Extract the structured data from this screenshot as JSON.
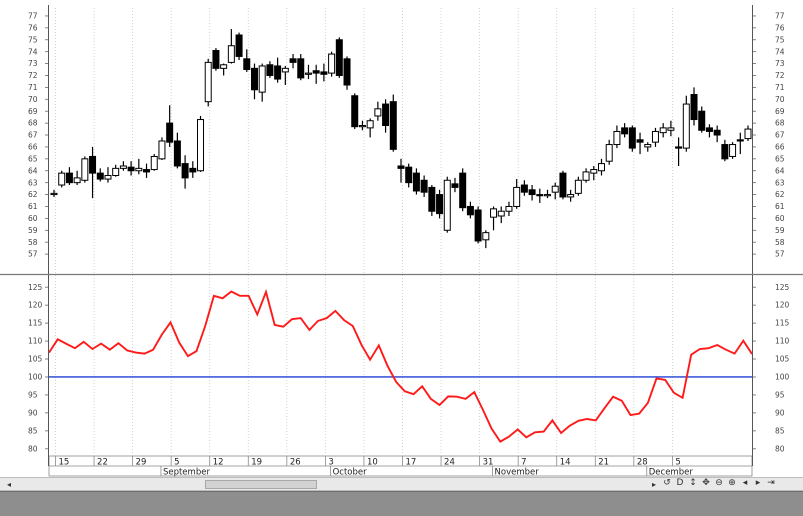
{
  "chart_data": [
    {
      "type": "candlestick",
      "title": "",
      "ylim": [
        56,
        77.5
      ],
      "y_ticks": [
        "57",
        "58",
        "59",
        "60",
        "61",
        "62",
        "63",
        "64",
        "65",
        "66",
        "67",
        "68",
        "69",
        "70",
        "71",
        "72",
        "73",
        "74",
        "75",
        "76",
        "77"
      ],
      "series": [
        {
          "candles": [
            {
              "o": 62.1,
              "h": 62.4,
              "l": 61.8,
              "c": 62.1
            },
            {
              "o": 62.8,
              "h": 64.0,
              "l": 62.6,
              "c": 63.8
            },
            {
              "o": 63.8,
              "h": 64.3,
              "l": 62.8,
              "c": 63.0
            },
            {
              "o": 63.0,
              "h": 64.0,
              "l": 62.8,
              "c": 63.4
            },
            {
              "o": 63.2,
              "h": 65.2,
              "l": 63.0,
              "c": 65.0
            },
            {
              "o": 65.2,
              "h": 66.0,
              "l": 61.7,
              "c": 63.8
            },
            {
              "o": 63.8,
              "h": 64.2,
              "l": 63.1,
              "c": 63.3
            },
            {
              "o": 63.3,
              "h": 64.3,
              "l": 63.0,
              "c": 63.6
            },
            {
              "o": 63.6,
              "h": 64.5,
              "l": 63.5,
              "c": 64.2
            },
            {
              "o": 64.2,
              "h": 64.8,
              "l": 64.0,
              "c": 64.4
            },
            {
              "o": 64.3,
              "h": 64.8,
              "l": 63.6,
              "c": 64.0
            },
            {
              "o": 64.0,
              "h": 65.0,
              "l": 63.7,
              "c": 64.2
            },
            {
              "o": 64.1,
              "h": 64.6,
              "l": 63.4,
              "c": 63.9
            },
            {
              "o": 64.1,
              "h": 65.4,
              "l": 64.0,
              "c": 65.2
            },
            {
              "o": 65.0,
              "h": 66.8,
              "l": 64.9,
              "c": 66.5
            },
            {
              "o": 68.0,
              "h": 69.5,
              "l": 66.0,
              "c": 66.4
            },
            {
              "o": 66.5,
              "h": 67.2,
              "l": 64.2,
              "c": 64.4
            },
            {
              "o": 64.6,
              "h": 65.3,
              "l": 62.5,
              "c": 63.4
            },
            {
              "o": 64.2,
              "h": 64.8,
              "l": 63.4,
              "c": 63.9
            },
            {
              "o": 64.0,
              "h": 68.6,
              "l": 63.9,
              "c": 68.3
            },
            {
              "o": 69.8,
              "h": 73.4,
              "l": 69.4,
              "c": 73.1
            },
            {
              "o": 74.1,
              "h": 74.3,
              "l": 72.4,
              "c": 72.6
            },
            {
              "o": 72.6,
              "h": 73.0,
              "l": 72.0,
              "c": 72.9
            },
            {
              "o": 73.1,
              "h": 75.9,
              "l": 73.0,
              "c": 74.5
            },
            {
              "o": 75.4,
              "h": 75.6,
              "l": 73.3,
              "c": 73.6
            },
            {
              "o": 73.4,
              "h": 74.2,
              "l": 72.3,
              "c": 72.5
            },
            {
              "o": 72.6,
              "h": 73.0,
              "l": 70.0,
              "c": 70.8
            },
            {
              "o": 70.6,
              "h": 73.0,
              "l": 69.8,
              "c": 72.8
            },
            {
              "o": 72.9,
              "h": 73.2,
              "l": 71.8,
              "c": 72.0
            },
            {
              "o": 72.8,
              "h": 73.5,
              "l": 71.4,
              "c": 71.7
            },
            {
              "o": 72.3,
              "h": 72.8,
              "l": 71.2,
              "c": 72.6
            },
            {
              "o": 73.4,
              "h": 73.8,
              "l": 72.6,
              "c": 73.1
            },
            {
              "o": 73.4,
              "h": 73.8,
              "l": 71.6,
              "c": 71.8
            },
            {
              "o": 72.2,
              "h": 72.9,
              "l": 71.7,
              "c": 72.2
            },
            {
              "o": 72.4,
              "h": 72.9,
              "l": 71.3,
              "c": 72.2
            },
            {
              "o": 72.3,
              "h": 73.0,
              "l": 71.5,
              "c": 72.1
            },
            {
              "o": 72.2,
              "h": 74.0,
              "l": 71.9,
              "c": 73.8
            },
            {
              "o": 75.0,
              "h": 75.2,
              "l": 71.8,
              "c": 72.0
            },
            {
              "o": 73.4,
              "h": 73.6,
              "l": 70.8,
              "c": 71.2
            },
            {
              "o": 70.3,
              "h": 70.5,
              "l": 67.5,
              "c": 67.7
            },
            {
              "o": 67.8,
              "h": 68.2,
              "l": 67.4,
              "c": 67.8
            },
            {
              "o": 67.6,
              "h": 68.4,
              "l": 66.8,
              "c": 68.2
            },
            {
              "o": 68.6,
              "h": 69.8,
              "l": 68.2,
              "c": 69.2
            },
            {
              "o": 69.6,
              "h": 70.0,
              "l": 67.2,
              "c": 67.8
            },
            {
              "o": 69.8,
              "h": 70.4,
              "l": 65.6,
              "c": 65.8
            },
            {
              "o": 64.4,
              "h": 65.0,
              "l": 63.0,
              "c": 64.2
            },
            {
              "o": 64.3,
              "h": 64.6,
              "l": 62.6,
              "c": 63.0
            },
            {
              "o": 63.8,
              "h": 64.2,
              "l": 62.0,
              "c": 62.3
            },
            {
              "o": 63.2,
              "h": 63.6,
              "l": 61.8,
              "c": 62.2
            },
            {
              "o": 62.6,
              "h": 62.8,
              "l": 60.2,
              "c": 60.6
            },
            {
              "o": 62.0,
              "h": 62.4,
              "l": 60.0,
              "c": 60.4
            },
            {
              "o": 59.0,
              "h": 63.5,
              "l": 58.8,
              "c": 63.2
            },
            {
              "o": 62.9,
              "h": 63.4,
              "l": 62.2,
              "c": 62.6
            },
            {
              "o": 63.8,
              "h": 64.2,
              "l": 60.6,
              "c": 60.9
            },
            {
              "o": 61.0,
              "h": 61.4,
              "l": 60.0,
              "c": 60.3
            },
            {
              "o": 60.7,
              "h": 61.0,
              "l": 57.9,
              "c": 58.1
            },
            {
              "o": 58.2,
              "h": 59.0,
              "l": 57.5,
              "c": 58.8
            },
            {
              "o": 60.1,
              "h": 61.0,
              "l": 59.0,
              "c": 60.8
            },
            {
              "o": 60.2,
              "h": 61.0,
              "l": 59.6,
              "c": 60.6
            },
            {
              "o": 60.6,
              "h": 61.4,
              "l": 60.2,
              "c": 61.0
            },
            {
              "o": 61.0,
              "h": 63.3,
              "l": 60.8,
              "c": 62.6
            },
            {
              "o": 62.8,
              "h": 63.2,
              "l": 61.9,
              "c": 62.2
            },
            {
              "o": 62.4,
              "h": 62.8,
              "l": 61.5,
              "c": 62.0
            },
            {
              "o": 62.0,
              "h": 62.5,
              "l": 61.3,
              "c": 61.9
            },
            {
              "o": 62.0,
              "h": 62.4,
              "l": 61.7,
              "c": 62.0
            },
            {
              "o": 62.2,
              "h": 63.0,
              "l": 61.6,
              "c": 62.7
            },
            {
              "o": 63.8,
              "h": 64.0,
              "l": 61.6,
              "c": 61.8
            },
            {
              "o": 61.8,
              "h": 62.4,
              "l": 61.4,
              "c": 62.0
            },
            {
              "o": 62.1,
              "h": 63.5,
              "l": 61.9,
              "c": 63.2
            },
            {
              "o": 63.2,
              "h": 64.2,
              "l": 63.0,
              "c": 63.9
            },
            {
              "o": 63.8,
              "h": 64.4,
              "l": 63.2,
              "c": 64.1
            },
            {
              "o": 64.0,
              "h": 65.0,
              "l": 63.6,
              "c": 64.6
            },
            {
              "o": 64.8,
              "h": 66.6,
              "l": 64.5,
              "c": 66.2
            },
            {
              "o": 66.2,
              "h": 67.8,
              "l": 65.9,
              "c": 67.3
            },
            {
              "o": 67.6,
              "h": 68.0,
              "l": 66.8,
              "c": 67.1
            },
            {
              "o": 67.6,
              "h": 67.8,
              "l": 65.6,
              "c": 65.9
            },
            {
              "o": 66.6,
              "h": 67.2,
              "l": 65.4,
              "c": 66.4
            },
            {
              "o": 66.0,
              "h": 66.4,
              "l": 65.6,
              "c": 66.2
            },
            {
              "o": 66.4,
              "h": 67.6,
              "l": 66.0,
              "c": 67.3
            },
            {
              "o": 67.2,
              "h": 68.0,
              "l": 66.8,
              "c": 67.6
            },
            {
              "o": 67.4,
              "h": 68.2,
              "l": 66.9,
              "c": 67.6
            },
            {
              "o": 66.0,
              "h": 66.8,
              "l": 64.4,
              "c": 65.9
            },
            {
              "o": 65.9,
              "h": 70.3,
              "l": 65.6,
              "c": 69.6
            },
            {
              "o": 70.4,
              "h": 71.0,
              "l": 67.8,
              "c": 68.3
            },
            {
              "o": 69.0,
              "h": 69.4,
              "l": 67.2,
              "c": 67.4
            },
            {
              "o": 67.6,
              "h": 67.9,
              "l": 66.8,
              "c": 67.3
            },
            {
              "o": 67.4,
              "h": 67.8,
              "l": 66.4,
              "c": 67.0
            },
            {
              "o": 66.2,
              "h": 66.6,
              "l": 64.8,
              "c": 65.0
            },
            {
              "o": 65.2,
              "h": 66.4,
              "l": 65.0,
              "c": 66.2
            },
            {
              "o": 66.6,
              "h": 67.2,
              "l": 65.4,
              "c": 66.5
            },
            {
              "o": 66.7,
              "h": 67.8,
              "l": 66.5,
              "c": 67.5
            }
          ]
        }
      ]
    },
    {
      "type": "line",
      "ylim": [
        78,
        127
      ],
      "y_ticks": [
        "80",
        "85",
        "90",
        "95",
        "100",
        "105",
        "110",
        "115",
        "120",
        "125"
      ],
      "reference_line": 100,
      "colors": {
        "series": "#ff1a1a",
        "reference": "#1f3fd4"
      },
      "series": [
        {
          "values": [
            106.8,
            110.5,
            109.2,
            108.0,
            109.8,
            107.8,
            109.3,
            107.6,
            109.4,
            107.4,
            106.8,
            106.5,
            107.6,
            111.8,
            115.2,
            109.6,
            105.8,
            107.2,
            114.2,
            122.6,
            121.9,
            123.8,
            122.6,
            122.6,
            117.4,
            123.7,
            114.5,
            114.0,
            116.1,
            116.4,
            113.1,
            115.6,
            116.4,
            118.4,
            115.8,
            114.2,
            109.0,
            104.8,
            108.8,
            103.1,
            98.6,
            96.0,
            95.2,
            97.4,
            93.9,
            92.2,
            94.6,
            94.5,
            93.9,
            95.8,
            90.8,
            85.6,
            82.0,
            83.4,
            85.4,
            83.2,
            84.6,
            84.8,
            87.9,
            84.4,
            86.4,
            87.8,
            88.3,
            87.9,
            91.3,
            94.5,
            93.4,
            89.4,
            89.8,
            92.8,
            99.6,
            99.2,
            95.6,
            94.2,
            106.2,
            107.8,
            108.0,
            108.9,
            107.6,
            106.5,
            110.1,
            106.4
          ]
        }
      ]
    }
  ],
  "x_axis": {
    "day_labels": [
      "15",
      "22",
      "29",
      "5",
      "12",
      "19",
      "26",
      "3",
      "10",
      "17",
      "24",
      "31",
      "7",
      "14",
      "21",
      "28",
      "5"
    ],
    "month_labels": [
      "September",
      "October",
      "November",
      "December"
    ]
  },
  "scrollbar": {
    "left_arrow": "◂",
    "right_arrow": "▸"
  },
  "toolbar": {
    "icons": [
      {
        "name": "refresh-icon",
        "glyph": "↺"
      },
      {
        "name": "d-icon",
        "glyph": "D"
      },
      {
        "name": "vertical-arrows-icon",
        "glyph": "↕"
      },
      {
        "name": "move-icon",
        "glyph": "✥"
      },
      {
        "name": "zoom-out-icon",
        "glyph": "⊖"
      },
      {
        "name": "zoom-in-icon",
        "glyph": "⊕"
      },
      {
        "name": "scroll-back-icon",
        "glyph": "◂"
      },
      {
        "name": "scroll-forward-icon",
        "glyph": "▸"
      },
      {
        "name": "scroll-end-icon",
        "glyph": "⇥"
      }
    ]
  }
}
